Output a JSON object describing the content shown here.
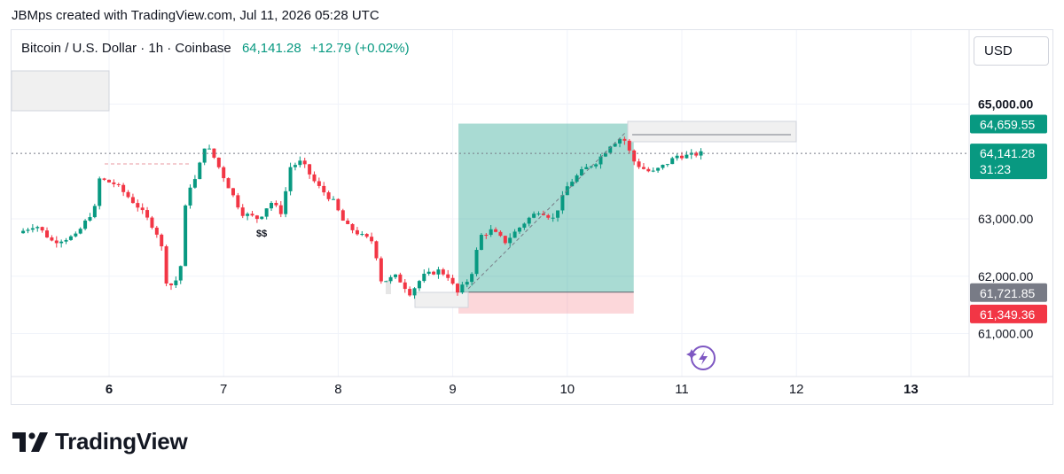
{
  "attribution": "JBMps created with TradingView.com, Jul 11, 2026 05:28 UTC",
  "legend": {
    "symbol": "Bitcoin / U.S. Dollar · 1h · Coinbase",
    "price": "64,141.28",
    "change": "+12.79 (+0.02%)"
  },
  "currency_button": "USD",
  "brand": "TradingView",
  "annotation_text": "$$",
  "colors": {
    "up": "#089981",
    "down": "#f23645",
    "accent": "#7e57c2"
  },
  "chart_data": {
    "type": "candlestick",
    "x_tick_labels": [
      "6",
      "7",
      "8",
      "9",
      "10",
      "11",
      "12",
      "13"
    ],
    "y_tick_labels": [
      "65,000.00",
      "63,000.00",
      "62,000.00",
      "61,000.00"
    ],
    "y_ticks": [
      65000,
      63000,
      62000,
      61000
    ],
    "ylim": [
      60500,
      65400
    ],
    "price_badges": [
      {
        "label": "64,659.55",
        "value": 64659.55,
        "color": "#089981"
      },
      {
        "label": "64,141.28",
        "sublabel": "31:23",
        "value": 64141.28,
        "color": "#089981"
      },
      {
        "label": "61,721.85",
        "value": 61721.85,
        "color": "#787b86"
      },
      {
        "label": "61,349.36",
        "value": 61349.36,
        "color": "#f23645"
      }
    ],
    "long_position": {
      "entry": 61721.85,
      "target": 64659.55,
      "stop": 61349.36,
      "start_day": 9.05,
      "end_day": 10.58
    },
    "key_points": [
      {
        "day": 5.25,
        "price": 62750
      },
      {
        "day": 5.4,
        "price": 62900
      },
      {
        "day": 5.55,
        "price": 62600
      },
      {
        "day": 5.75,
        "price": 62700
      },
      {
        "day": 5.92,
        "price": 63200
      },
      {
        "day": 5.95,
        "price": 63700
      },
      {
        "day": 6.1,
        "price": 63600
      },
      {
        "day": 6.3,
        "price": 63200
      },
      {
        "day": 6.45,
        "price": 62800
      },
      {
        "day": 6.5,
        "price": 62500
      },
      {
        "day": 6.55,
        "price": 61800
      },
      {
        "day": 6.62,
        "price": 61900
      },
      {
        "day": 6.67,
        "price": 62200
      },
      {
        "day": 6.72,
        "price": 63500
      },
      {
        "day": 6.8,
        "price": 63700
      },
      {
        "day": 6.88,
        "price": 64300
      },
      {
        "day": 6.95,
        "price": 64100
      },
      {
        "day": 7.1,
        "price": 63500
      },
      {
        "day": 7.2,
        "price": 63100
      },
      {
        "day": 7.35,
        "price": 63000
      },
      {
        "day": 7.45,
        "price": 63300
      },
      {
        "day": 7.55,
        "price": 63100
      },
      {
        "day": 7.62,
        "price": 63900
      },
      {
        "day": 7.72,
        "price": 64000
      },
      {
        "day": 7.85,
        "price": 63600
      },
      {
        "day": 8.0,
        "price": 63300
      },
      {
        "day": 8.1,
        "price": 62900
      },
      {
        "day": 8.25,
        "price": 62700
      },
      {
        "day": 8.35,
        "price": 62600
      },
      {
        "day": 8.42,
        "price": 61900
      },
      {
        "day": 8.55,
        "price": 62000
      },
      {
        "day": 8.67,
        "price": 61700
      },
      {
        "day": 8.78,
        "price": 62000
      },
      {
        "day": 8.92,
        "price": 62100
      },
      {
        "day": 9.0,
        "price": 62000
      },
      {
        "day": 9.08,
        "price": 61700
      },
      {
        "day": 9.2,
        "price": 62000
      },
      {
        "day": 9.28,
        "price": 62700
      },
      {
        "day": 9.38,
        "price": 62800
      },
      {
        "day": 9.5,
        "price": 62600
      },
      {
        "day": 9.6,
        "price": 62800
      },
      {
        "day": 9.7,
        "price": 63000
      },
      {
        "day": 9.8,
        "price": 63150
      },
      {
        "day": 9.92,
        "price": 63000
      },
      {
        "day": 10.05,
        "price": 63600
      },
      {
        "day": 10.18,
        "price": 63850
      },
      {
        "day": 10.3,
        "price": 64000
      },
      {
        "day": 10.42,
        "price": 64300
      },
      {
        "day": 10.5,
        "price": 64400
      },
      {
        "day": 10.56,
        "price": 64350
      },
      {
        "day": 10.6,
        "price": 64050
      },
      {
        "day": 10.68,
        "price": 63900
      },
      {
        "day": 10.78,
        "price": 63800
      },
      {
        "day": 10.9,
        "price": 63950
      },
      {
        "day": 11.0,
        "price": 64100
      },
      {
        "day": 11.1,
        "price": 64100
      },
      {
        "day": 11.2,
        "price": 64141
      }
    ]
  }
}
